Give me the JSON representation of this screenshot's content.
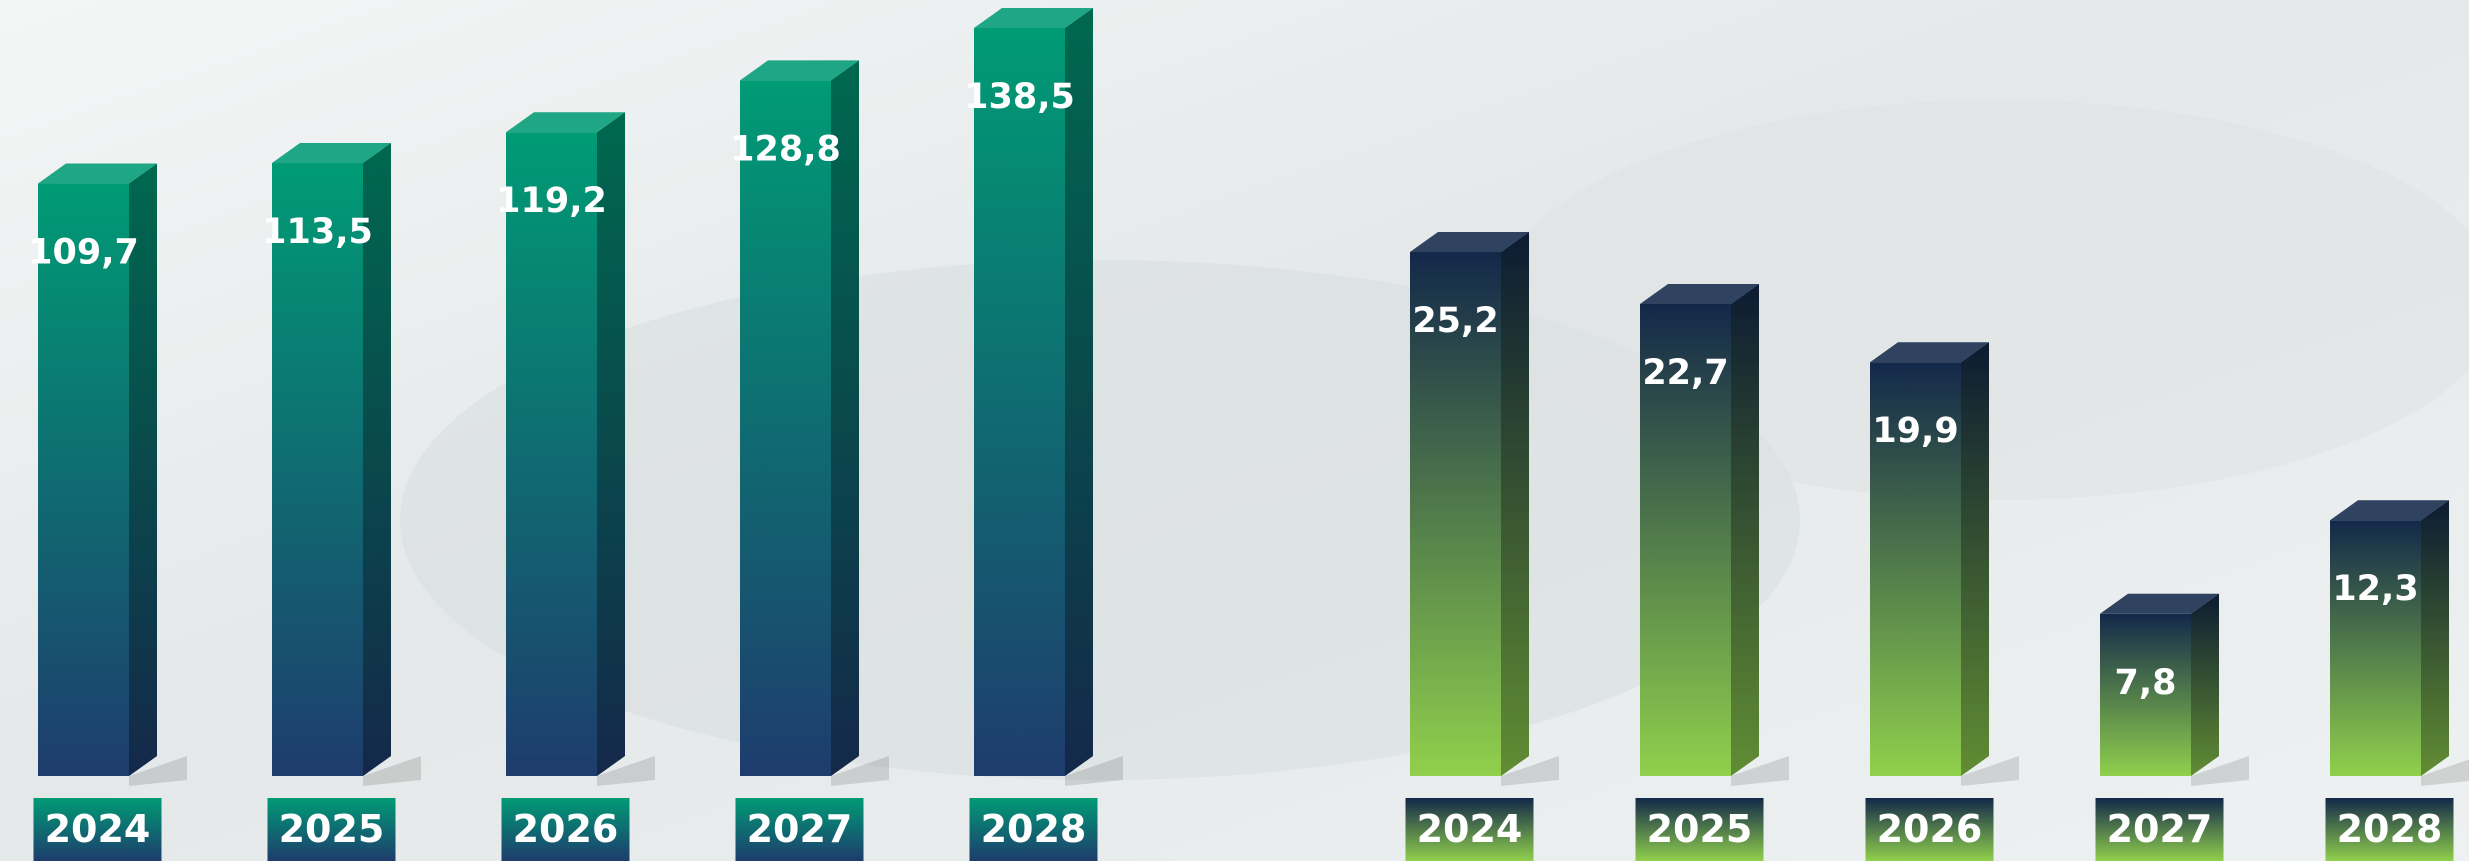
{
  "chart_data": [
    {
      "type": "bar3d",
      "categories": [
        "2024",
        "2025",
        "2026",
        "2027",
        "2028"
      ],
      "values": [
        109.7,
        113.5,
        119.2,
        128.8,
        138.5
      ],
      "value_labels": [
        "109,7",
        "113,5",
        "119,2",
        "128,8",
        "138,5"
      ],
      "colors": [
        "#009b75",
        "#1e3c6d"
      ]
    },
    {
      "type": "bar3d",
      "categories": [
        "2024",
        "2025",
        "2026",
        "2027",
        "2028"
      ],
      "values": [
        25.2,
        22.7,
        19.9,
        7.8,
        12.3
      ],
      "value_labels": [
        "25,2",
        "22,7",
        "19,9",
        "7,8",
        "12,3"
      ],
      "colors": [
        "#13284a",
        "#90d04c"
      ]
    }
  ]
}
